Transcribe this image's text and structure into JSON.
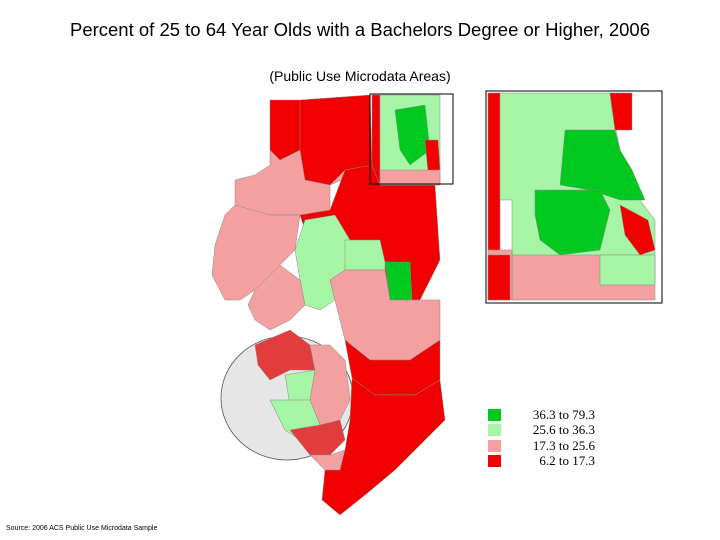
{
  "title": "Percent of 25 to 64 Year Olds with a Bachelors Degree or Higher, 2006",
  "subtitle": "(Public Use Microdata Areas)",
  "source": "Source: 2006 ACS Public Use Microdata Sample",
  "colors": {
    "high": "#00c81e",
    "mid_high": "#a5f5a5",
    "mid_low": "#f5a0a0",
    "low": "#f00000",
    "outline": "#8a8a8a",
    "highlight_circle": "#e6e6e6"
  },
  "legend": [
    {
      "label": "36.3 to 79.3",
      "color": "#00c81e"
    },
    {
      "label": "25.6 to 36.3",
      "color": "#a5f5a5"
    },
    {
      "label": "17.3 to 25.6",
      "color": "#f5a0a0"
    },
    {
      "label": "6.2 to 17.3",
      "color": "#f00000"
    }
  ]
}
